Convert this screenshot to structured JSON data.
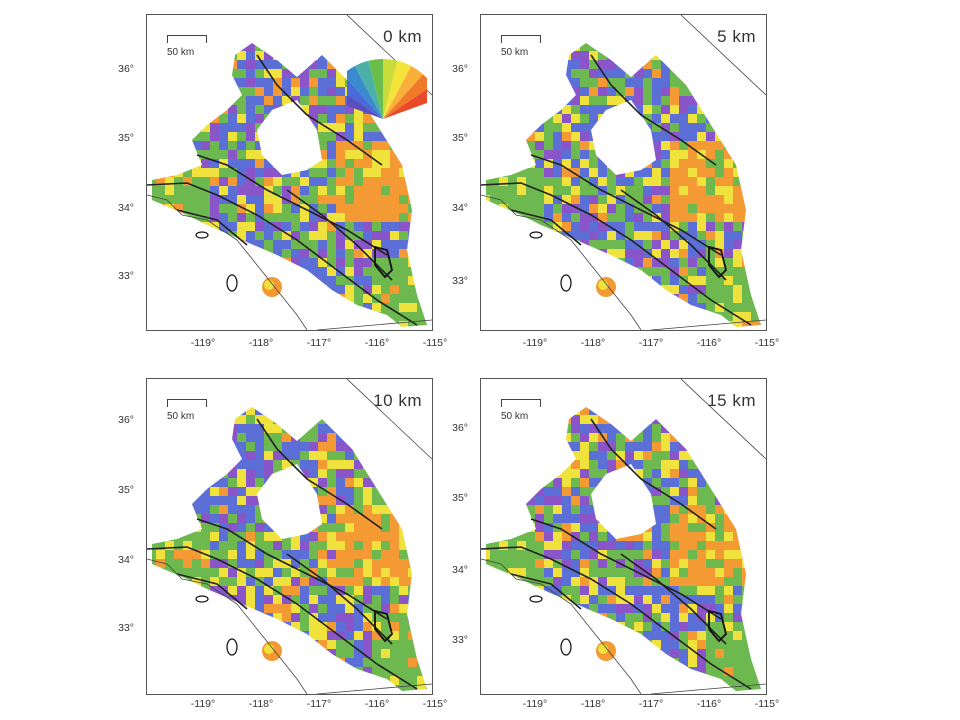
{
  "panels": [
    {
      "depth_label": "0 km"
    },
    {
      "depth_label": "5 km"
    },
    {
      "depth_label": "10 km"
    },
    {
      "depth_label": "15 km"
    }
  ],
  "scale_label": "50 km",
  "lat_labels": [
    "36°",
    "35°",
    "34°",
    "33°"
  ],
  "lon_labels": [
    "-119°",
    "-118°",
    "-117°",
    "-116°",
    "-115°"
  ],
  "legend": {
    "type": "color-fan",
    "colors": [
      "#5a4fbf",
      "#4a6ad8",
      "#3a8ad0",
      "#4ab0a8",
      "#6cbe4a",
      "#c8dc3a",
      "#f4e43a",
      "#f8b03a",
      "#f07a2a",
      "#e84a2a"
    ]
  },
  "colors": {
    "blue": "#5b6fd6",
    "purple": "#8a55c9",
    "green": "#6db84f",
    "yellow": "#f0e23c",
    "orange": "#f39a35",
    "red": "#e5512e"
  }
}
